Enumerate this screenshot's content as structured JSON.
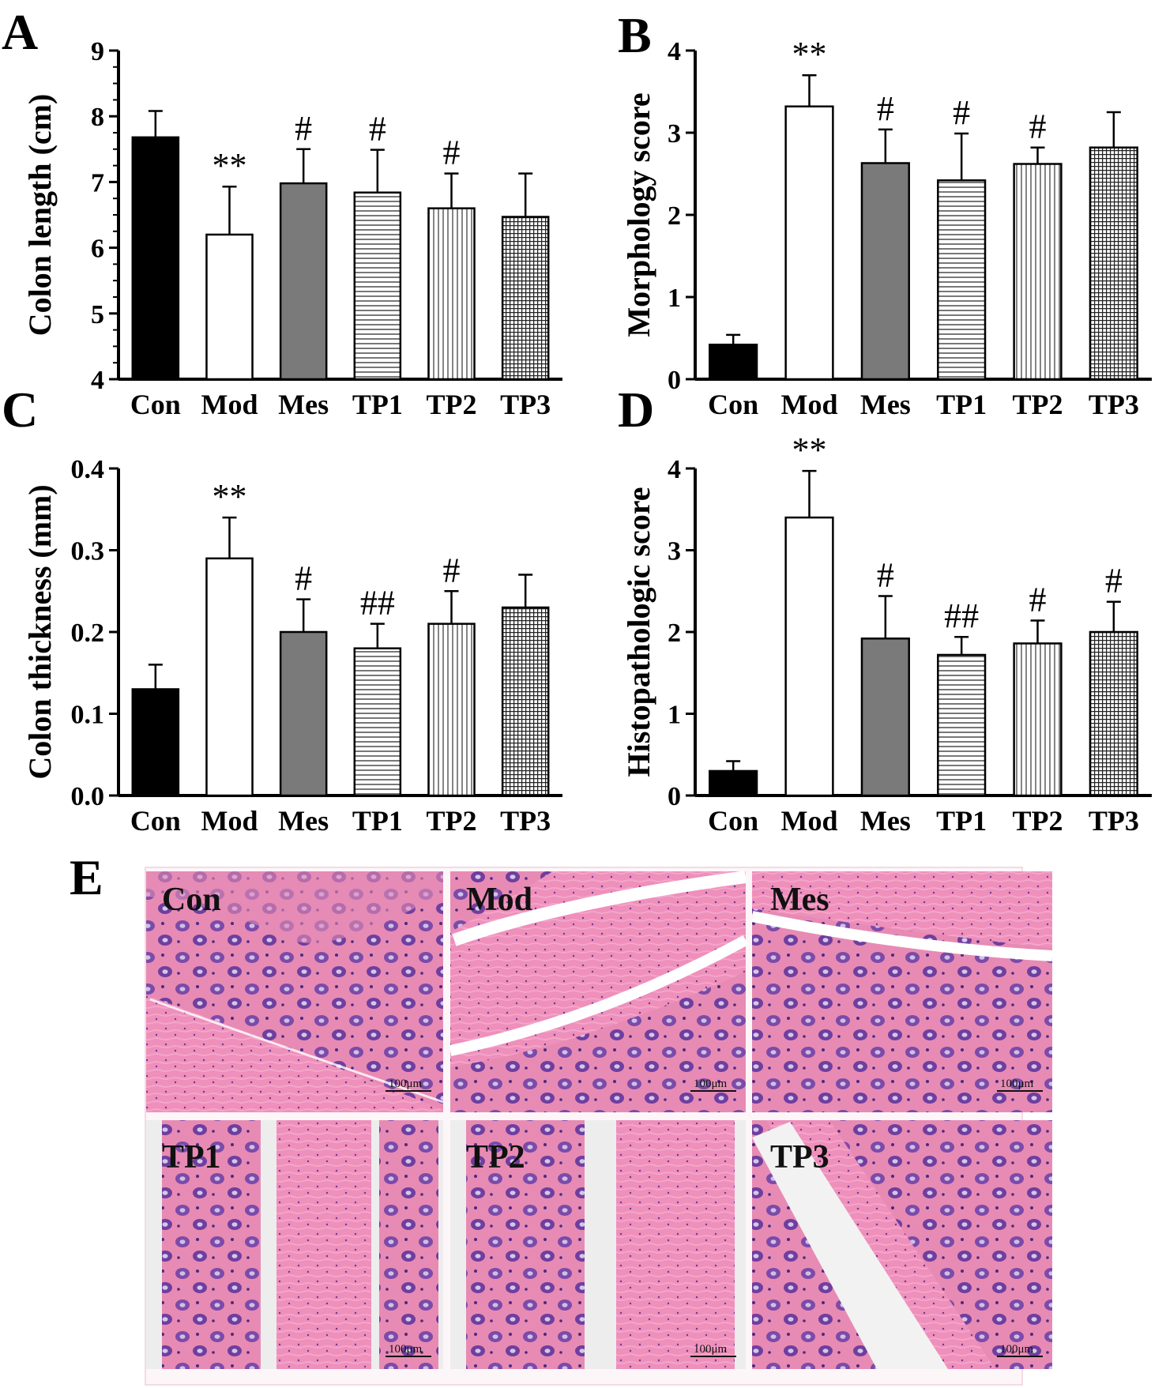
{
  "chart_data": [
    {
      "panel": "A",
      "type": "bar",
      "categories": [
        "Con",
        "Mod",
        "Mes",
        "TP1",
        "TP2",
        "TP3"
      ],
      "values": [
        7.68,
        6.2,
        6.98,
        6.84,
        6.6,
        6.47
      ],
      "errors": [
        0.4,
        0.73,
        0.52,
        0.65,
        0.53,
        0.66
      ],
      "annotations": [
        "",
        "**",
        "#",
        "#",
        "#",
        ""
      ],
      "ylabel": "Colon length (cm)",
      "ylim": [
        4,
        9
      ],
      "yticks": [
        "4",
        "5",
        "6",
        "7",
        "8",
        "9"
      ]
    },
    {
      "panel": "B",
      "type": "bar",
      "categories": [
        "Con",
        "Mod",
        "Mes",
        "TP1",
        "TP2",
        "TP3"
      ],
      "values": [
        0.42,
        3.32,
        2.63,
        2.42,
        2.62,
        2.82
      ],
      "errors": [
        0.12,
        0.38,
        0.41,
        0.57,
        0.2,
        0.43
      ],
      "annotations": [
        "",
        "**",
        "#",
        "#",
        "#",
        ""
      ],
      "ylabel": "Morphology score",
      "ylim": [
        0,
        4
      ],
      "yticks": [
        "0",
        "1",
        "2",
        "3",
        "4"
      ]
    },
    {
      "panel": "C",
      "type": "bar",
      "categories": [
        "Con",
        "Mod",
        "Mes",
        "TP1",
        "TP2",
        "TP3"
      ],
      "values": [
        0.13,
        0.29,
        0.2,
        0.18,
        0.21,
        0.23
      ],
      "errors": [
        0.03,
        0.05,
        0.04,
        0.03,
        0.04,
        0.04
      ],
      "annotations": [
        "",
        "**",
        "#",
        "##",
        "#",
        ""
      ],
      "ylabel": "Colon thickness (mm)",
      "ylim": [
        0,
        0.4
      ],
      "yticks": [
        "0.0",
        "0.1",
        "0.2",
        "0.3",
        "0.4"
      ]
    },
    {
      "panel": "D",
      "type": "bar",
      "categories": [
        "Con",
        "Mod",
        "Mes",
        "TP1",
        "TP2",
        "TP3"
      ],
      "values": [
        0.3,
        3.4,
        1.92,
        1.72,
        1.86,
        2.0
      ],
      "errors": [
        0.12,
        0.57,
        0.52,
        0.22,
        0.28,
        0.37
      ],
      "annotations": [
        "",
        "**",
        "#",
        "##",
        "#",
        "#"
      ],
      "ylabel": "Histopathologic score",
      "ylim": [
        0,
        4
      ],
      "yticks": [
        "0",
        "1",
        "2",
        "3",
        "4"
      ]
    }
  ],
  "bar_fills": [
    "solid-black",
    "white",
    "solid-gray",
    "horizontal-lines",
    "vertical-lines",
    "grid-crosshatch"
  ],
  "colors": {
    "black": "#000000",
    "gray": "#7a7a7a",
    "tissue_pink": "#e07aa6",
    "tissue_purple": "#6b3d9c",
    "background": "#ffffff"
  },
  "panels": {
    "a": "A",
    "b": "B",
    "c": "C",
    "d": "D",
    "e": "E"
  },
  "micrographs": {
    "labels": [
      "Con",
      "Mod",
      "Mes",
      "TP1",
      "TP2",
      "TP3"
    ],
    "scale_bar": "100μm"
  }
}
